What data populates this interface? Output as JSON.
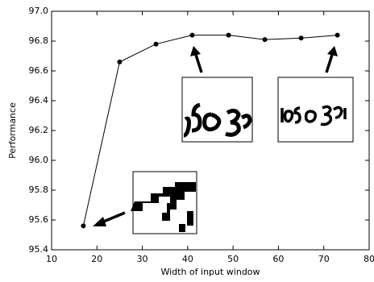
{
  "chart_data": {
    "type": "line",
    "x_label": "Width of input window",
    "y_label": "Performance",
    "x": [
      17,
      25,
      33,
      41,
      49,
      57,
      65,
      73
    ],
    "series": [
      {
        "color": "#000000",
        "values": [
          95.56,
          96.66,
          96.78,
          96.84,
          96.84,
          96.81,
          96.82,
          96.84
        ]
      }
    ],
    "xlim": [
      10,
      80
    ],
    "xticks": [
      10,
      20,
      30,
      40,
      50,
      60,
      70,
      80
    ],
    "ylim": [
      95.4,
      97.0
    ],
    "yticks": [
      95.4,
      95.6,
      95.8,
      {
        "value": 96.0,
        "label": "96.0"
      },
      96.2,
      96.4,
      96.6,
      96.8,
      {
        "value": 97.0,
        "label": "97.0"
      }
    ]
  }
}
